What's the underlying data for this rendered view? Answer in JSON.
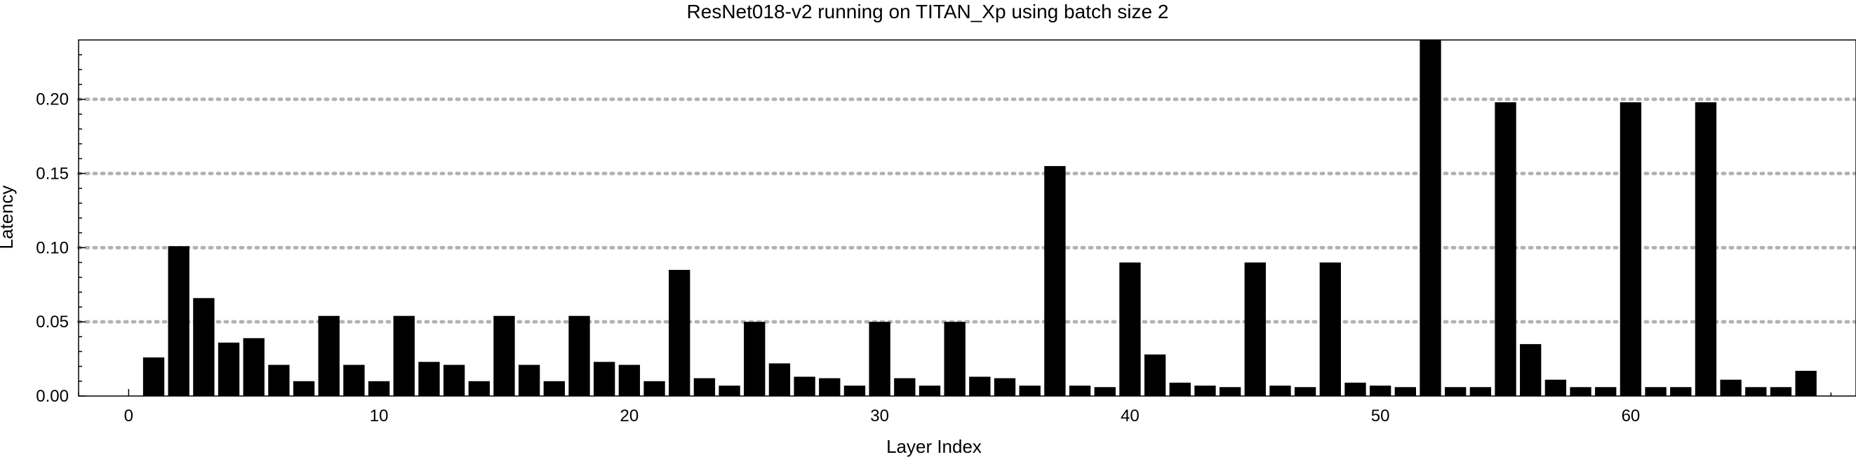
{
  "chart_data": {
    "type": "bar",
    "title": "ResNet018-v2 running on TITAN_Xp using batch size 2",
    "xlabel": "Layer Index",
    "ylabel": "Latency",
    "xlim": [
      -2,
      69
    ],
    "ylim": [
      0,
      0.24
    ],
    "x_ticks": [
      0,
      10,
      20,
      30,
      40,
      50,
      60
    ],
    "x_tick_labels": [
      "0",
      "10",
      "20",
      "30",
      "40",
      "50",
      "60"
    ],
    "y_ticks": [
      0,
      0.05,
      0.1,
      0.15,
      0.2
    ],
    "y_tick_labels": [
      "0.00",
      "0.05",
      "0.10",
      "0.15",
      "0.20"
    ],
    "grid": "horizontal dotted",
    "color": "#000000",
    "x": [
      1,
      2,
      3,
      4,
      5,
      6,
      7,
      8,
      9,
      10,
      11,
      12,
      13,
      14,
      15,
      16,
      17,
      18,
      19,
      20,
      21,
      22,
      23,
      24,
      25,
      26,
      27,
      28,
      29,
      30,
      31,
      32,
      33,
      34,
      35,
      36,
      37,
      38,
      39,
      40,
      41,
      42,
      43,
      44,
      45,
      46,
      47,
      48,
      49,
      50,
      51,
      52,
      53,
      54,
      55,
      56,
      57,
      58,
      59,
      60,
      61,
      62,
      63,
      64,
      65,
      66,
      67
    ],
    "values": [
      0.026,
      0.101,
      0.066,
      0.036,
      0.039,
      0.021,
      0.01,
      0.054,
      0.021,
      0.01,
      0.054,
      0.023,
      0.021,
      0.01,
      0.054,
      0.021,
      0.01,
      0.054,
      0.023,
      0.021,
      0.01,
      0.085,
      0.012,
      0.007,
      0.05,
      0.022,
      0.013,
      0.012,
      0.007,
      0.05,
      0.012,
      0.007,
      0.05,
      0.013,
      0.012,
      0.007,
      0.155,
      0.007,
      0.006,
      0.09,
      0.028,
      0.009,
      0.007,
      0.006,
      0.09,
      0.007,
      0.006,
      0.09,
      0.009,
      0.007,
      0.006,
      0.24,
      0.006,
      0.006,
      0.198,
      0.035,
      0.011,
      0.006,
      0.006,
      0.198,
      0.006,
      0.006,
      0.198,
      0.011,
      0.006,
      0.006,
      0.017
    ]
  }
}
